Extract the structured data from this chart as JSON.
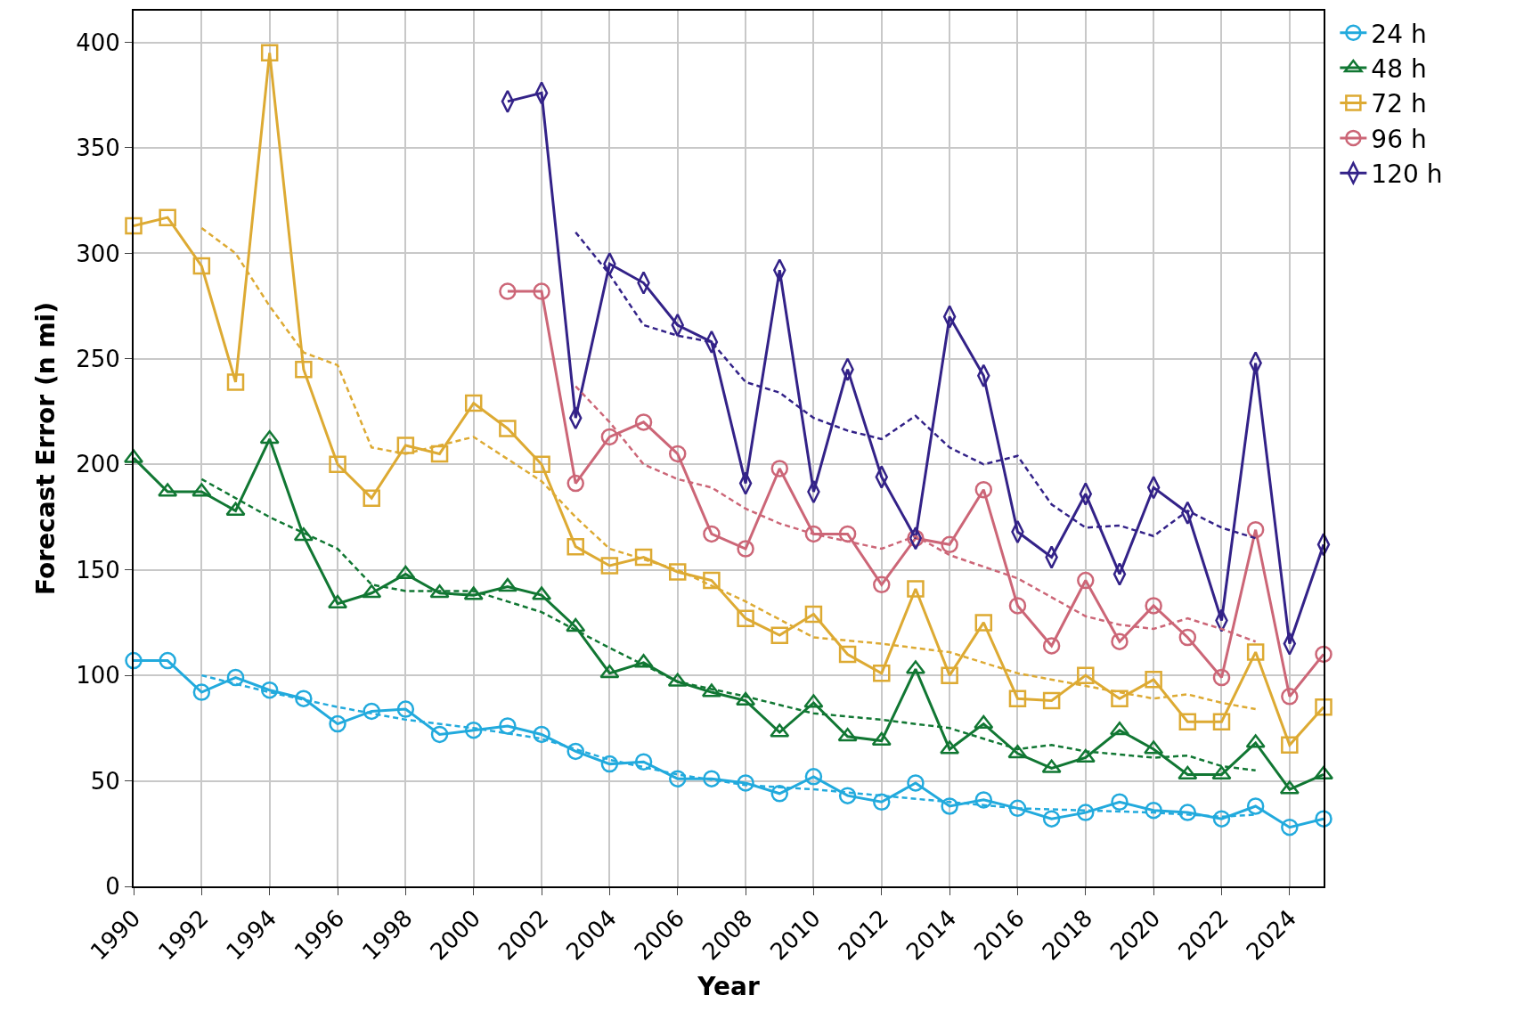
{
  "chart_data": {
    "type": "line",
    "xlabel": "Year",
    "ylabel": "Forecast Error (n mi)",
    "xlim": [
      1990,
      2025
    ],
    "ylim": [
      0,
      415
    ],
    "xticks": [
      1990,
      1992,
      1994,
      1996,
      1998,
      2000,
      2002,
      2004,
      2006,
      2008,
      2010,
      2012,
      2014,
      2016,
      2018,
      2020,
      2022,
      2024
    ],
    "yticks": [
      0,
      50,
      100,
      150,
      200,
      250,
      300,
      350,
      400
    ],
    "grid": true,
    "legend": "top right",
    "line_style": "solid",
    "series": [
      {
        "name": "24 h",
        "color": "#22aadd",
        "marker": "circle",
        "x": [
          1990,
          1991,
          1992,
          1993,
          1994,
          1995,
          1996,
          1997,
          1998,
          1999,
          2000,
          2001,
          2002,
          2003,
          2004,
          2005,
          2006,
          2007,
          2008,
          2009,
          2010,
          2011,
          2012,
          2013,
          2014,
          2015,
          2016,
          2017,
          2018,
          2019,
          2020,
          2021,
          2022,
          2023,
          2024,
          2025
        ],
        "values": [
          107,
          107,
          92,
          99,
          93,
          89,
          77,
          83,
          84,
          72,
          74,
          76,
          72,
          64,
          58,
          59,
          51,
          51,
          49,
          44,
          52,
          43,
          40,
          49,
          38,
          41,
          37,
          32,
          35,
          40,
          36,
          35,
          32,
          38,
          28,
          32
        ]
      },
      {
        "name": "48 h",
        "color": "#117733",
        "marker": "triangle",
        "x": [
          1990,
          1991,
          1992,
          1993,
          1994,
          1995,
          1996,
          1997,
          1998,
          1999,
          2000,
          2001,
          2002,
          2003,
          2004,
          2005,
          2006,
          2007,
          2008,
          2009,
          2010,
          2011,
          2012,
          2013,
          2014,
          2015,
          2016,
          2017,
          2018,
          2019,
          2020,
          2021,
          2022,
          2023,
          2024,
          2025
        ],
        "values": [
          203,
          187,
          187,
          178,
          212,
          166,
          134,
          139,
          148,
          139,
          138,
          142,
          138,
          123,
          101,
          106,
          97,
          92,
          88,
          73,
          87,
          71,
          69,
          103,
          65,
          77,
          63,
          56,
          61,
          74,
          65,
          53,
          53,
          68,
          46,
          53
        ]
      },
      {
        "name": "72 h",
        "color": "#ddaa33",
        "marker": "square",
        "x": [
          1990,
          1991,
          1992,
          1993,
          1994,
          1995,
          1996,
          1997,
          1998,
          1999,
          2000,
          2001,
          2002,
          2003,
          2004,
          2005,
          2006,
          2007,
          2008,
          2009,
          2010,
          2011,
          2012,
          2013,
          2014,
          2015,
          2016,
          2017,
          2018,
          2019,
          2020,
          2021,
          2022,
          2023,
          2024,
          2025
        ],
        "values": [
          313,
          317,
          294,
          239,
          395,
          245,
          200,
          184,
          209,
          205,
          229,
          217,
          200,
          161,
          152,
          156,
          149,
          145,
          127,
          119,
          129,
          110,
          101,
          141,
          100,
          125,
          89,
          88,
          100,
          89,
          98,
          78,
          78,
          111,
          67,
          85
        ]
      },
      {
        "name": "96 h",
        "color": "#cc6677",
        "marker": "circle",
        "x": [
          2001,
          2002,
          2003,
          2004,
          2005,
          2006,
          2007,
          2008,
          2009,
          2010,
          2011,
          2012,
          2013,
          2014,
          2015,
          2016,
          2017,
          2018,
          2019,
          2020,
          2021,
          2022,
          2023,
          2024,
          2025
        ],
        "values": [
          282,
          282,
          191,
          213,
          220,
          205,
          167,
          160,
          198,
          167,
          167,
          143,
          165,
          162,
          188,
          133,
          114,
          145,
          116,
          133,
          118,
          99,
          169,
          90,
          110
        ]
      },
      {
        "name": "120 h",
        "color": "#332288",
        "marker": "diamond",
        "x": [
          2001,
          2002,
          2003,
          2004,
          2005,
          2006,
          2007,
          2008,
          2009,
          2010,
          2011,
          2012,
          2013,
          2014,
          2015,
          2016,
          2017,
          2018,
          2019,
          2020,
          2021,
          2022,
          2023,
          2024,
          2025
        ],
        "values": [
          372,
          376,
          222,
          295,
          286,
          266,
          258,
          191,
          292,
          187,
          245,
          194,
          165,
          270,
          242,
          168,
          156,
          186,
          148,
          189,
          177,
          126,
          248,
          115,
          162
        ]
      },
      {
        "color": "#22aadd",
        "marker": "none",
        "line_style": "dashed",
        "x": [
          1992,
          1994,
          1996,
          1998,
          2000,
          2002,
          2004,
          2006,
          2008,
          2010,
          2012,
          2014,
          2016,
          2018,
          2020,
          2022,
          2023
        ],
        "values": [
          100,
          92,
          85,
          79,
          75,
          70,
          60,
          53,
          48,
          46,
          43,
          40,
          37,
          36,
          35,
          33,
          34
        ]
      },
      {
        "color": "#117733",
        "marker": "none",
        "line_style": "dashed",
        "x": [
          1992,
          1994,
          1996,
          1997,
          1998,
          2000,
          2002,
          2004,
          2006,
          2008,
          2010,
          2012,
          2014,
          2016,
          2017,
          2018,
          2020,
          2021,
          2022,
          2023
        ],
        "values": [
          193,
          175,
          160,
          143,
          140,
          140,
          130,
          113,
          97,
          90,
          82,
          79,
          75,
          65,
          67,
          64,
          61,
          62,
          57,
          55
        ]
      },
      {
        "color": "#ddaa33",
        "marker": "none",
        "line_style": "dashed",
        "x": [
          1992,
          1993,
          1994,
          1995,
          1996,
          1997,
          1998,
          2000,
          2002,
          2003,
          2004,
          2006,
          2008,
          2010,
          2012,
          2014,
          2016,
          2018,
          2020,
          2021,
          2022,
          2023
        ],
        "values": [
          312,
          300,
          275,
          253,
          247,
          208,
          205,
          213,
          192,
          175,
          160,
          150,
          135,
          118,
          115,
          111,
          101,
          95,
          89,
          91,
          87,
          84
        ]
      },
      {
        "color": "#cc6677",
        "marker": "none",
        "line_style": "dashed",
        "x": [
          2003,
          2004,
          2005,
          2006,
          2007,
          2008,
          2009,
          2010,
          2012,
          2013,
          2014,
          2016,
          2018,
          2019,
          2020,
          2021,
          2022,
          2023
        ],
        "values": [
          237,
          220,
          200,
          193,
          189,
          179,
          172,
          167,
          160,
          166,
          157,
          146,
          128,
          124,
          122,
          127,
          122,
          116
        ]
      },
      {
        "color": "#332288",
        "marker": "none",
        "line_style": "dashed",
        "x": [
          2003,
          2004,
          2005,
          2006,
          2007,
          2008,
          2009,
          2010,
          2011,
          2012,
          2013,
          2014,
          2015,
          2016,
          2017,
          2018,
          2019,
          2020,
          2021,
          2022,
          2023
        ],
        "values": [
          310,
          290,
          266,
          261,
          258,
          239,
          234,
          222,
          216,
          212,
          223,
          208,
          200,
          204,
          181,
          170,
          171,
          166,
          178,
          170,
          165
        ]
      }
    ]
  }
}
